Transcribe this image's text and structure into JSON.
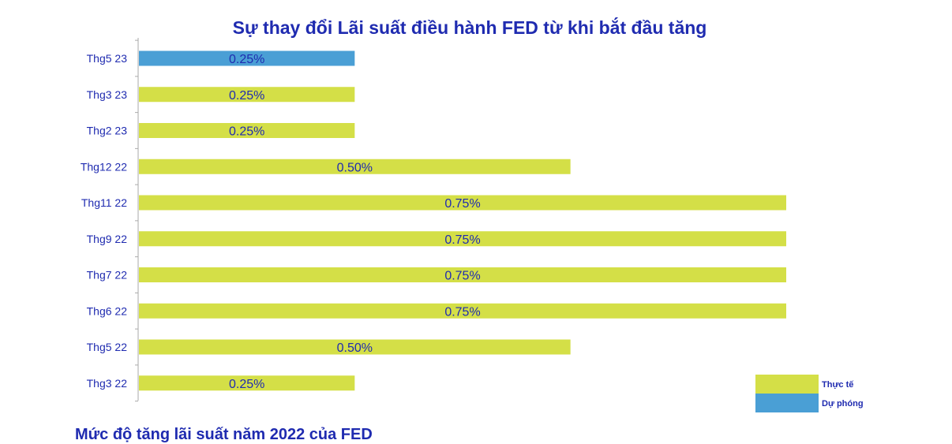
{
  "chart_data": {
    "type": "bar",
    "orientation": "horizontal",
    "title": "Sự thay đổi Lãi suất điều hành FED từ khi bắt đầu tăng",
    "categories": [
      "Thg5 23",
      "Thg3 23",
      "Thg2 23",
      "Thg12 22",
      "Thg11 22",
      "Thg9 22",
      "Thg7 22",
      "Thg6 22",
      "Thg5 22",
      "Thg3 22"
    ],
    "values": [
      0.25,
      0.25,
      0.25,
      0.5,
      0.75,
      0.75,
      0.75,
      0.75,
      0.5,
      0.25
    ],
    "data_labels": [
      "0.25%",
      "0.25%",
      "0.25%",
      "0.50%",
      "0.75%",
      "0.75%",
      "0.75%",
      "0.75%",
      "0.50%",
      "0.25%"
    ],
    "series_kind": [
      "projected",
      "actual",
      "actual",
      "actual",
      "actual",
      "actual",
      "actual",
      "actual",
      "actual",
      "actual"
    ],
    "xlim": [
      0,
      0.75
    ],
    "xlabel": "",
    "ylabel": "",
    "grid": false,
    "legend": {
      "position": "bottom-right",
      "entries": [
        {
          "key": "actual",
          "label": "Thực tế",
          "color": "#d4df47"
        },
        {
          "key": "projected",
          "label": "Dự phóng",
          "color": "#4a9fd5"
        }
      ]
    }
  },
  "colors": {
    "actual": "#d4df47",
    "projected": "#4a9fd5",
    "text": "#1f2bb0",
    "axis": "#aaaaaa"
  },
  "footer_partial_text": "Mức độ tăng lãi suất năm 2022 của FED"
}
